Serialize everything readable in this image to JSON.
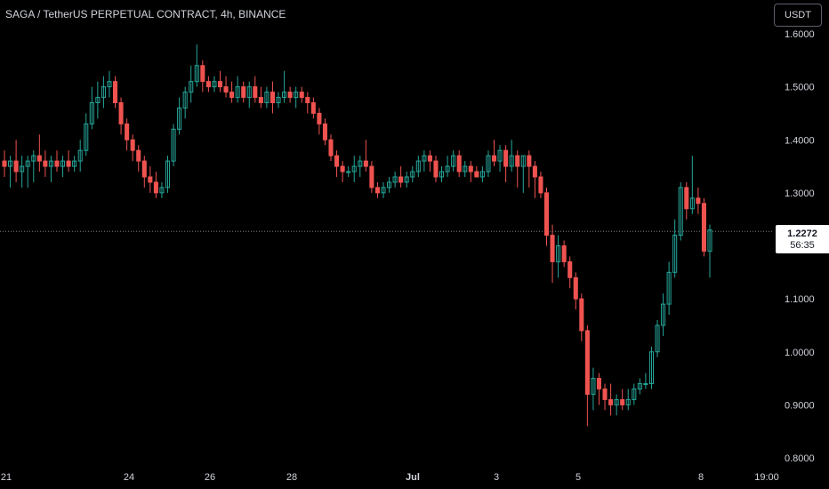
{
  "header": {
    "title": "SAGA / TetherUS PERPETUAL CONTRACT, 4h, BINANCE",
    "currency": "USDT"
  },
  "price_tag": {
    "value": "1.2272",
    "countdown": "56:35"
  },
  "colors": {
    "background": "#000000",
    "up": "#26a69a",
    "down": "#ef5350",
    "text": "#d1d4dc"
  },
  "chart_data": {
    "type": "candlestick",
    "symbol": "SAGA / TetherUS PERPETUAL CONTRACT",
    "interval": "4h",
    "exchange": "BINANCE",
    "last_price": 1.2272,
    "ylim": [
      0.8,
      1.6
    ],
    "y_ticks": [
      "1.6000",
      "1.5000",
      "1.4000",
      "1.3000",
      "1.2000",
      "1.1000",
      "1.0000",
      "0.9000",
      "0.8000"
    ],
    "x_ticks": [
      "21",
      "24",
      "26",
      "28",
      "Jul",
      "3",
      "5",
      "8",
      "19:00"
    ],
    "ohlc": [
      [
        1.36,
        1.38,
        1.33,
        1.35
      ],
      [
        1.35,
        1.37,
        1.31,
        1.36
      ],
      [
        1.36,
        1.4,
        1.32,
        1.34
      ],
      [
        1.34,
        1.37,
        1.31,
        1.35
      ],
      [
        1.35,
        1.37,
        1.31,
        1.36
      ],
      [
        1.36,
        1.38,
        1.32,
        1.37
      ],
      [
        1.37,
        1.41,
        1.34,
        1.36
      ],
      [
        1.36,
        1.38,
        1.33,
        1.35
      ],
      [
        1.35,
        1.37,
        1.32,
        1.36
      ],
      [
        1.36,
        1.38,
        1.34,
        1.35
      ],
      [
        1.35,
        1.37,
        1.33,
        1.36
      ],
      [
        1.36,
        1.38,
        1.34,
        1.35
      ],
      [
        1.35,
        1.37,
        1.34,
        1.36
      ],
      [
        1.36,
        1.4,
        1.34,
        1.38
      ],
      [
        1.38,
        1.45,
        1.37,
        1.43
      ],
      [
        1.43,
        1.5,
        1.42,
        1.47
      ],
      [
        1.47,
        1.51,
        1.44,
        1.48
      ],
      [
        1.48,
        1.52,
        1.46,
        1.5
      ],
      [
        1.5,
        1.53,
        1.48,
        1.51
      ],
      [
        1.51,
        1.52,
        1.46,
        1.47
      ],
      [
        1.47,
        1.48,
        1.41,
        1.43
      ],
      [
        1.43,
        1.44,
        1.38,
        1.4
      ],
      [
        1.4,
        1.41,
        1.36,
        1.38
      ],
      [
        1.38,
        1.39,
        1.34,
        1.36
      ],
      [
        1.36,
        1.37,
        1.31,
        1.33
      ],
      [
        1.33,
        1.35,
        1.3,
        1.32
      ],
      [
        1.32,
        1.34,
        1.29,
        1.3
      ],
      [
        1.3,
        1.32,
        1.29,
        1.31
      ],
      [
        1.31,
        1.37,
        1.3,
        1.36
      ],
      [
        1.36,
        1.43,
        1.35,
        1.42
      ],
      [
        1.42,
        1.48,
        1.41,
        1.46
      ],
      [
        1.46,
        1.5,
        1.44,
        1.49
      ],
      [
        1.49,
        1.54,
        1.47,
        1.51
      ],
      [
        1.51,
        1.58,
        1.5,
        1.54
      ],
      [
        1.54,
        1.55,
        1.49,
        1.51
      ],
      [
        1.51,
        1.52,
        1.49,
        1.5
      ],
      [
        1.5,
        1.52,
        1.49,
        1.51
      ],
      [
        1.51,
        1.53,
        1.49,
        1.5
      ],
      [
        1.5,
        1.52,
        1.48,
        1.49
      ],
      [
        1.49,
        1.51,
        1.47,
        1.48
      ],
      [
        1.48,
        1.52,
        1.47,
        1.5
      ],
      [
        1.5,
        1.51,
        1.47,
        1.48
      ],
      [
        1.48,
        1.51,
        1.46,
        1.5
      ],
      [
        1.5,
        1.52,
        1.47,
        1.48
      ],
      [
        1.48,
        1.5,
        1.46,
        1.47
      ],
      [
        1.47,
        1.5,
        1.46,
        1.49
      ],
      [
        1.49,
        1.51,
        1.45,
        1.47
      ],
      [
        1.47,
        1.49,
        1.46,
        1.48
      ],
      [
        1.48,
        1.53,
        1.47,
        1.49
      ],
      [
        1.49,
        1.5,
        1.47,
        1.48
      ],
      [
        1.48,
        1.5,
        1.46,
        1.49
      ],
      [
        1.49,
        1.5,
        1.47,
        1.48
      ],
      [
        1.48,
        1.49,
        1.45,
        1.47
      ],
      [
        1.47,
        1.48,
        1.44,
        1.45
      ],
      [
        1.45,
        1.46,
        1.41,
        1.43
      ],
      [
        1.43,
        1.44,
        1.39,
        1.4
      ],
      [
        1.4,
        1.41,
        1.36,
        1.37
      ],
      [
        1.37,
        1.38,
        1.33,
        1.35
      ],
      [
        1.35,
        1.36,
        1.32,
        1.34
      ],
      [
        1.34,
        1.35,
        1.33,
        1.34
      ],
      [
        1.34,
        1.37,
        1.32,
        1.35
      ],
      [
        1.35,
        1.37,
        1.33,
        1.36
      ],
      [
        1.36,
        1.4,
        1.34,
        1.35
      ],
      [
        1.35,
        1.36,
        1.3,
        1.31
      ],
      [
        1.31,
        1.32,
        1.29,
        1.3
      ],
      [
        1.3,
        1.32,
        1.29,
        1.31
      ],
      [
        1.31,
        1.33,
        1.3,
        1.32
      ],
      [
        1.32,
        1.34,
        1.31,
        1.33
      ],
      [
        1.33,
        1.35,
        1.31,
        1.32
      ],
      [
        1.32,
        1.34,
        1.31,
        1.33
      ],
      [
        1.33,
        1.35,
        1.32,
        1.34
      ],
      [
        1.34,
        1.37,
        1.33,
        1.36
      ],
      [
        1.36,
        1.38,
        1.34,
        1.37
      ],
      [
        1.37,
        1.38,
        1.34,
        1.36
      ],
      [
        1.36,
        1.37,
        1.32,
        1.33
      ],
      [
        1.33,
        1.35,
        1.32,
        1.34
      ],
      [
        1.34,
        1.37,
        1.33,
        1.35
      ],
      [
        1.35,
        1.38,
        1.34,
        1.37
      ],
      [
        1.37,
        1.38,
        1.33,
        1.34
      ],
      [
        1.34,
        1.36,
        1.33,
        1.35
      ],
      [
        1.35,
        1.36,
        1.32,
        1.34
      ],
      [
        1.34,
        1.35,
        1.33,
        1.33
      ],
      [
        1.33,
        1.35,
        1.32,
        1.34
      ],
      [
        1.34,
        1.38,
        1.33,
        1.37
      ],
      [
        1.37,
        1.4,
        1.35,
        1.36
      ],
      [
        1.36,
        1.39,
        1.34,
        1.38
      ],
      [
        1.38,
        1.39,
        1.32,
        1.35
      ],
      [
        1.35,
        1.4,
        1.34,
        1.37
      ],
      [
        1.37,
        1.38,
        1.31,
        1.35
      ],
      [
        1.35,
        1.37,
        1.3,
        1.37
      ],
      [
        1.37,
        1.38,
        1.31,
        1.35
      ],
      [
        1.35,
        1.36,
        1.29,
        1.33
      ],
      [
        1.33,
        1.34,
        1.29,
        1.3
      ],
      [
        1.3,
        1.31,
        1.2,
        1.22
      ],
      [
        1.22,
        1.24,
        1.13,
        1.17
      ],
      [
        1.17,
        1.22,
        1.14,
        1.2
      ],
      [
        1.2,
        1.21,
        1.16,
        1.17
      ],
      [
        1.17,
        1.18,
        1.12,
        1.14
      ],
      [
        1.14,
        1.15,
        1.08,
        1.1
      ],
      [
        1.1,
        1.11,
        1.02,
        1.04
      ],
      [
        1.04,
        1.05,
        0.86,
        0.92
      ],
      [
        0.92,
        0.97,
        0.89,
        0.95
      ],
      [
        0.95,
        0.96,
        0.9,
        0.93
      ],
      [
        0.93,
        0.94,
        0.89,
        0.91
      ],
      [
        0.91,
        0.94,
        0.88,
        0.9
      ],
      [
        0.9,
        0.92,
        0.88,
        0.91
      ],
      [
        0.91,
        0.93,
        0.89,
        0.9
      ],
      [
        0.9,
        0.93,
        0.89,
        0.91
      ],
      [
        0.91,
        0.94,
        0.9,
        0.93
      ],
      [
        0.93,
        0.95,
        0.92,
        0.94
      ],
      [
        0.94,
        0.96,
        0.93,
        0.94
      ],
      [
        0.94,
        1.01,
        0.93,
        1.0
      ],
      [
        1.0,
        1.06,
        0.99,
        1.05
      ],
      [
        1.05,
        1.11,
        1.03,
        1.09
      ],
      [
        1.09,
        1.17,
        1.07,
        1.15
      ],
      [
        1.15,
        1.25,
        1.14,
        1.22
      ],
      [
        1.22,
        1.32,
        1.21,
        1.31
      ],
      [
        1.31,
        1.32,
        1.25,
        1.27
      ],
      [
        1.27,
        1.37,
        1.26,
        1.29
      ],
      [
        1.29,
        1.31,
        1.26,
        1.28
      ],
      [
        1.28,
        1.29,
        1.18,
        1.19
      ],
      [
        1.19,
        1.24,
        1.14,
        1.23
      ]
    ]
  }
}
